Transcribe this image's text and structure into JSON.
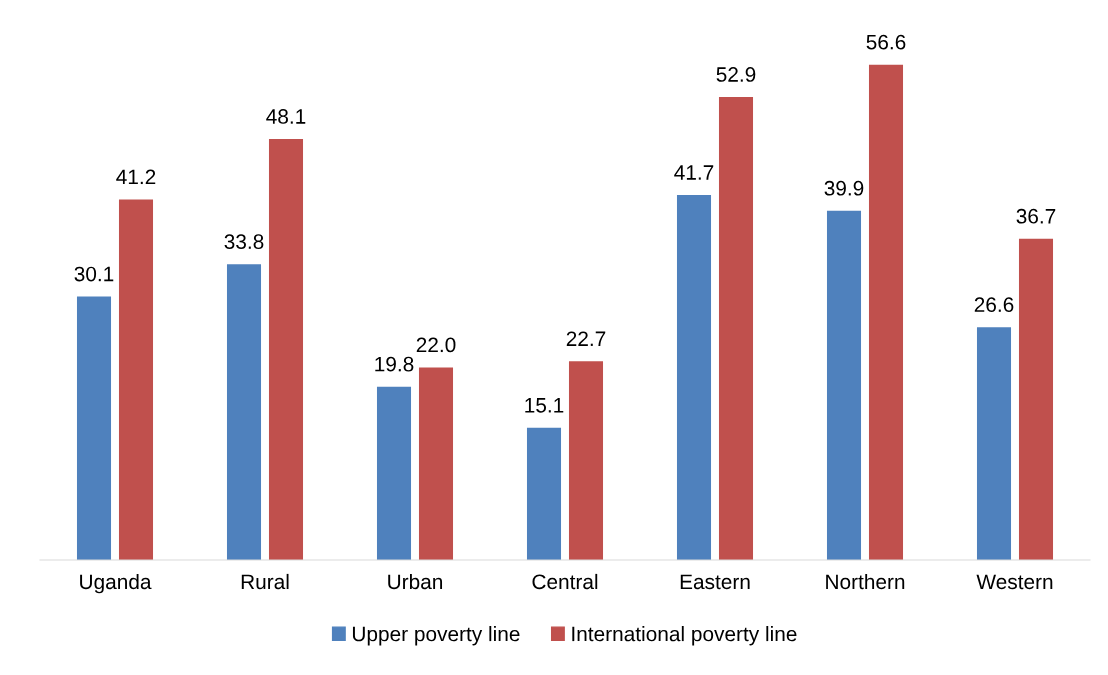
{
  "chart_data": {
    "type": "bar",
    "categories": [
      "Uganda",
      "Rural",
      "Urban",
      "Central",
      "Eastern",
      "Northern",
      "Western"
    ],
    "series": [
      {
        "name": "Upper poverty line",
        "color": "#4f81bd",
        "values": [
          30.1,
          33.8,
          19.8,
          15.1,
          41.7,
          39.9,
          26.6
        ],
        "value_labels": [
          "30.1",
          "33.8",
          "19.8",
          "15.1",
          "41.7",
          "39.9",
          "26.6"
        ]
      },
      {
        "name": "International poverty line",
        "color": "#c0504d",
        "values": [
          41.2,
          48.1,
          22.0,
          22.7,
          52.9,
          56.6,
          36.7
        ],
        "value_labels": [
          "41.2",
          "48.1",
          "22.0",
          "22.7",
          "52.9",
          "56.6",
          "36.7"
        ]
      }
    ],
    "legend": "bottom"
  }
}
